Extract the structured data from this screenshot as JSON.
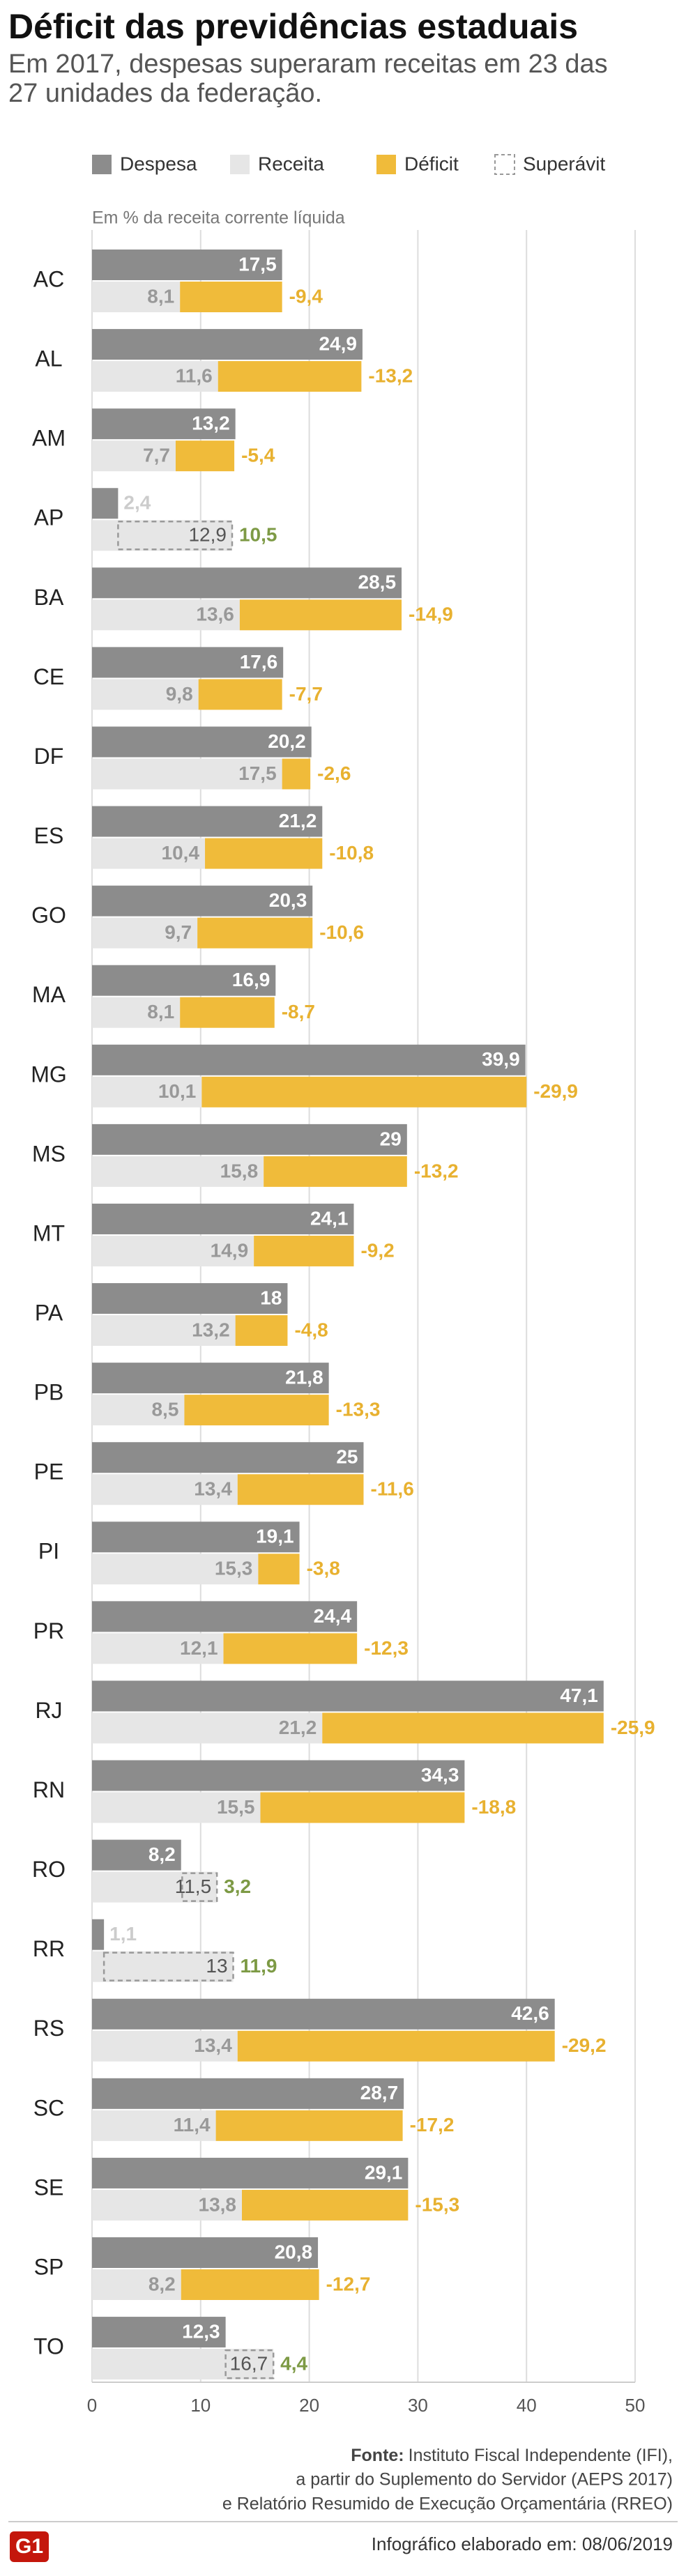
{
  "chart_data": {
    "type": "bar",
    "title": "Déficit das previdências estaduais",
    "subtitle": [
      "Em 2017, despesas superaram receitas em 23 das",
      "27 unidades da federação."
    ],
    "x_axis_label": "Em % da receita corrente líquida",
    "categories": [
      "AC",
      "AL",
      "AM",
      "AP",
      "BA",
      "CE",
      "DF",
      "ES",
      "GO",
      "MA",
      "MG",
      "MS",
      "MT",
      "PA",
      "PB",
      "PE",
      "PI",
      "PR",
      "RJ",
      "RN",
      "RO",
      "RR",
      "RS",
      "SC",
      "SE",
      "SP",
      "TO"
    ],
    "series": [
      {
        "name": "Despesa",
        "color": "#8c8c8c",
        "values": [
          17.5,
          24.9,
          13.2,
          2.4,
          28.5,
          17.6,
          20.2,
          21.2,
          20.3,
          16.9,
          39.9,
          29,
          24.1,
          18,
          21.8,
          25,
          19.1,
          24.4,
          47.1,
          34.3,
          8.2,
          1.1,
          42.6,
          28.7,
          29.1,
          20.8,
          12.3
        ],
        "value_labels": [
          "17,5",
          "24,9",
          "13,2",
          "2,4",
          "28,5",
          "17,6",
          "20,2",
          "21,2",
          "20,3",
          "16,9",
          "39,9",
          "29",
          "24,1",
          "18",
          "21,8",
          "25",
          "19,1",
          "24,4",
          "47,1",
          "34,3",
          "8,2",
          "1,1",
          "42,6",
          "28,7",
          "29,1",
          "20,8",
          "12,3"
        ]
      },
      {
        "name": "Receita",
        "color": "#e6e6e6",
        "values": [
          8.1,
          11.6,
          7.7,
          12.9,
          13.6,
          9.8,
          17.5,
          10.4,
          9.7,
          8.1,
          10.1,
          15.8,
          14.9,
          13.2,
          8.5,
          13.4,
          15.3,
          12.1,
          21.2,
          15.5,
          11.5,
          13,
          13.4,
          11.4,
          13.8,
          8.2,
          16.7
        ],
        "value_labels": [
          "8,1",
          "11,6",
          "7,7",
          "12,9",
          "13,6",
          "9,8",
          "17,5",
          "10,4",
          "9,7",
          "8,1",
          "10,1",
          "15,8",
          "14,9",
          "13,2",
          "8,5",
          "13,4",
          "15,3",
          "12,1",
          "21,2",
          "15,5",
          "11,5",
          "13",
          "13,4",
          "11,4",
          "13,8",
          "8,2",
          "16,7"
        ]
      },
      {
        "name": "Déficit",
        "color": "#f0bb3a",
        "values": [
          -9.4,
          -13.2,
          -5.4,
          null,
          -14.9,
          -7.7,
          -2.6,
          -10.8,
          -10.6,
          -8.7,
          -29.9,
          -13.2,
          -9.2,
          -4.8,
          -13.3,
          -11.6,
          -3.8,
          -12.3,
          -25.9,
          -18.8,
          null,
          null,
          -29.2,
          -17.2,
          -15.3,
          -12.7,
          null
        ],
        "value_labels": [
          "-9,4",
          "-13,2",
          "-5,4",
          null,
          "-14,9",
          "-7,7",
          "-2,6",
          "-10,8",
          "-10,6",
          "-8,7",
          "-29,9",
          "-13,2",
          "-9,2",
          "-4,8",
          "-13,3",
          "-11,6",
          "-3,8",
          "-12,3",
          "-25,9",
          "-18,8",
          null,
          null,
          "-29,2",
          "-17,2",
          "-15,3",
          "-12,7",
          null
        ]
      },
      {
        "name": "Superávit",
        "color": "#7d9a45",
        "values": [
          null,
          null,
          null,
          10.5,
          null,
          null,
          null,
          null,
          null,
          null,
          null,
          null,
          null,
          null,
          null,
          null,
          null,
          null,
          null,
          null,
          3.2,
          11.9,
          null,
          null,
          null,
          null,
          4.4
        ],
        "value_labels": [
          null,
          null,
          null,
          "10,5",
          null,
          null,
          null,
          null,
          null,
          null,
          null,
          null,
          null,
          null,
          null,
          null,
          null,
          null,
          null,
          null,
          "3,2",
          "11,9",
          null,
          null,
          null,
          null,
          "4,4"
        ]
      }
    ],
    "xlim": [
      0,
      50
    ],
    "xticks": [
      0,
      10,
      20,
      30,
      40,
      50
    ],
    "grid": true,
    "source_label": "Fonte:",
    "source": [
      "Instituto Fiscal Independente (IFI),",
      "a partir do Suplemento do Servidor (AEPS 2017)",
      "e Relatório Resumido de Execução Orçamentária (RREO)"
    ],
    "footer": "Infográfico elaborado em: 08/06/2019",
    "logo": "G1"
  }
}
